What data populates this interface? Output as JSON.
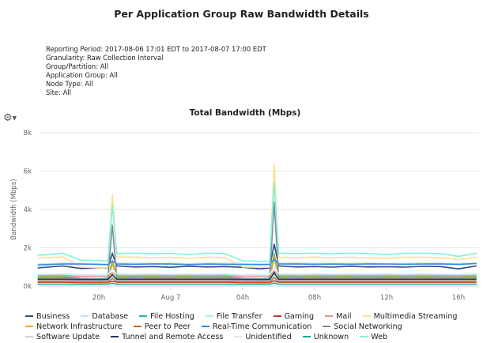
{
  "report": {
    "title": "Per Application Group Raw Bandwidth Details",
    "meta": [
      "Reporting Period: 2017-08-06 17:01 EDT to 2017-08-07 17:00 EDT",
      "Granularity: Raw Collection Interval",
      "Group/Partition: All",
      "Application Group: All",
      "Node Type: All",
      "Site: All"
    ],
    "settings_icon": "gear-icon"
  },
  "chart_data": {
    "type": "line",
    "title": "Total Bandwidth (Mbps)",
    "xlabel": "",
    "ylabel": "Bandwidth (Mbps)",
    "ylim": [
      0,
      8000
    ],
    "yticks": [
      "0k",
      "2k",
      "4k",
      "6k",
      "8k"
    ],
    "ytick_values": [
      0,
      2000,
      4000,
      6000,
      8000
    ],
    "xticks": [
      "20h",
      "Aug 7",
      "04h",
      "08h",
      "12h",
      "16h"
    ],
    "xtick_hours": [
      20,
      24,
      28,
      32,
      36,
      40
    ],
    "grid": true,
    "legend_position": "bottom",
    "x": [
      "17:00",
      "18:00",
      "19:00",
      "20:00",
      "20:30",
      "20:45",
      "21:00",
      "22:00",
      "23:00",
      "00:00",
      "01:00",
      "02:00",
      "03:00",
      "04:00",
      "05:00",
      "05:30",
      "05:45",
      "06:00",
      "07:00",
      "08:00",
      "09:00",
      "10:00",
      "11:00",
      "12:00",
      "13:00",
      "14:00",
      "15:00",
      "16:00",
      "17:00"
    ],
    "series": [
      {
        "name": "Business",
        "color": "#2c4a87",
        "values": [
          950,
          1050,
          920,
          950,
          960,
          1700,
          1050,
          1000,
          1020,
          980,
          1040,
          1000,
          1020,
          980,
          900,
          950,
          2200,
          1050,
          1000,
          1020,
          990,
          1040,
          1000,
          1010,
          990,
          1030,
          1020,
          900,
          1050
        ]
      },
      {
        "name": "Database",
        "color": "#c6e2f7",
        "values": [
          1150,
          1200,
          1180,
          1160,
          1150,
          1250,
          1190,
          1200,
          1180,
          1190,
          1170,
          1200,
          1190,
          1170,
          1160,
          1150,
          1300,
          1200,
          1190,
          1200,
          1180,
          1190,
          1200,
          1180,
          1190,
          1200,
          1190,
          1170,
          1210
        ]
      },
      {
        "name": "File Hosting",
        "color": "#1fb5a5",
        "values": [
          480,
          490,
          400,
          380,
          400,
          1300,
          490,
          480,
          490,
          480,
          490,
          480,
          490,
          400,
          380,
          400,
          1700,
          490,
          480,
          490,
          480,
          490,
          480,
          490,
          480,
          490,
          480,
          470,
          490
        ]
      },
      {
        "name": "File Transfer",
        "color": "#9ef2e4",
        "values": [
          600,
          620,
          560,
          550,
          560,
          1100,
          610,
          620,
          600,
          610,
          620,
          600,
          610,
          560,
          550,
          560,
          1300,
          610,
          620,
          600,
          610,
          620,
          600,
          610,
          620,
          600,
          610,
          600,
          620
        ]
      },
      {
        "name": "Gaming",
        "color": "#c0392b",
        "values": [
          200,
          200,
          190,
          190,
          190,
          260,
          200,
          200,
          200,
          200,
          200,
          200,
          200,
          190,
          190,
          190,
          280,
          200,
          200,
          200,
          200,
          200,
          200,
          200,
          200,
          200,
          200,
          200,
          200
        ]
      },
      {
        "name": "Mail",
        "color": "#f4948a",
        "values": [
          550,
          560,
          500,
          490,
          500,
          700,
          560,
          550,
          560,
          550,
          560,
          550,
          560,
          500,
          490,
          500,
          800,
          560,
          550,
          560,
          550,
          560,
          550,
          560,
          550,
          560,
          550,
          540,
          560
        ]
      },
      {
        "name": "Multimedia Streaming",
        "color": "#ffe08f",
        "values": [
          1450,
          1520,
          1000,
          950,
          980,
          4800,
          1520,
          1500,
          1480,
          1510,
          1450,
          1500,
          1490,
          1000,
          980,
          990,
          6400,
          1500,
          1490,
          1510,
          1480,
          1500,
          1490,
          1450,
          1500,
          1510,
          1490,
          1380,
          1500
        ]
      },
      {
        "name": "Network Infrastructure",
        "color": "#f0a800",
        "values": [
          450,
          460,
          300,
          280,
          300,
          1200,
          460,
          450,
          460,
          450,
          460,
          450,
          460,
          300,
          280,
          300,
          1600,
          460,
          450,
          460,
          450,
          460,
          450,
          460,
          450,
          460,
          450,
          440,
          460
        ]
      },
      {
        "name": "Peer to Peer",
        "color": "#e8680f",
        "values": [
          250,
          250,
          220,
          220,
          220,
          400,
          250,
          250,
          250,
          250,
          250,
          250,
          250,
          220,
          220,
          220,
          450,
          250,
          250,
          250,
          250,
          250,
          250,
          250,
          250,
          250,
          250,
          250,
          250
        ]
      },
      {
        "name": "Real-Time Communication",
        "color": "#2f8de4",
        "values": [
          1100,
          1150,
          1150,
          1130,
          1120,
          1300,
          1150,
          1140,
          1160,
          1150,
          1120,
          1150,
          1140,
          1130,
          1120,
          1130,
          1400,
          1150,
          1160,
          1140,
          1150,
          1140,
          1160,
          1150,
          1140,
          1150,
          1160,
          1130,
          1180
        ]
      },
      {
        "name": "Social Networking",
        "color": "#7d8c9a",
        "values": [
          400,
          410,
          380,
          370,
          380,
          3200,
          410,
          400,
          410,
          400,
          410,
          400,
          410,
          380,
          370,
          380,
          4400,
          410,
          400,
          410,
          400,
          410,
          400,
          410,
          400,
          410,
          400,
          390,
          410
        ]
      },
      {
        "name": "Software Update",
        "color": "#cfd4d8",
        "values": [
          300,
          300,
          290,
          290,
          290,
          500,
          300,
          300,
          300,
          300,
          300,
          300,
          300,
          290,
          290,
          290,
          600,
          300,
          300,
          300,
          300,
          300,
          300,
          300,
          300,
          300,
          300,
          300,
          300
        ]
      },
      {
        "name": "Tunnel and Remote Access",
        "color": "#22375e",
        "values": [
          350,
          350,
          340,
          340,
          340,
          600,
          350,
          350,
          350,
          350,
          350,
          350,
          350,
          340,
          340,
          340,
          700,
          350,
          350,
          350,
          350,
          350,
          350,
          350,
          350,
          350,
          350,
          350,
          350
        ]
      },
      {
        "name": "Unidentified",
        "color": "#d8ecfa",
        "values": [
          620,
          640,
          600,
          590,
          600,
          900,
          640,
          630,
          640,
          620,
          640,
          630,
          640,
          600,
          590,
          600,
          1000,
          640,
          630,
          640,
          630,
          640,
          630,
          640,
          630,
          640,
          630,
          620,
          650
        ]
      },
      {
        "name": "Unknown",
        "color": "#16a899",
        "values": [
          100,
          100,
          100,
          100,
          100,
          150,
          100,
          100,
          100,
          100,
          100,
          100,
          100,
          100,
          100,
          100,
          160,
          100,
          100,
          100,
          100,
          100,
          100,
          100,
          100,
          100,
          100,
          100,
          100
        ]
      },
      {
        "name": "Web",
        "color": "#7ff3dc",
        "values": [
          1600,
          1720,
          1350,
          1330,
          1300,
          4200,
          1700,
          1720,
          1690,
          1710,
          1650,
          1720,
          1700,
          1310,
          1290,
          1300,
          5400,
          1720,
          1700,
          1710,
          1690,
          1720,
          1700,
          1650,
          1710,
          1720,
          1700,
          1550,
          1720
        ]
      }
    ]
  }
}
